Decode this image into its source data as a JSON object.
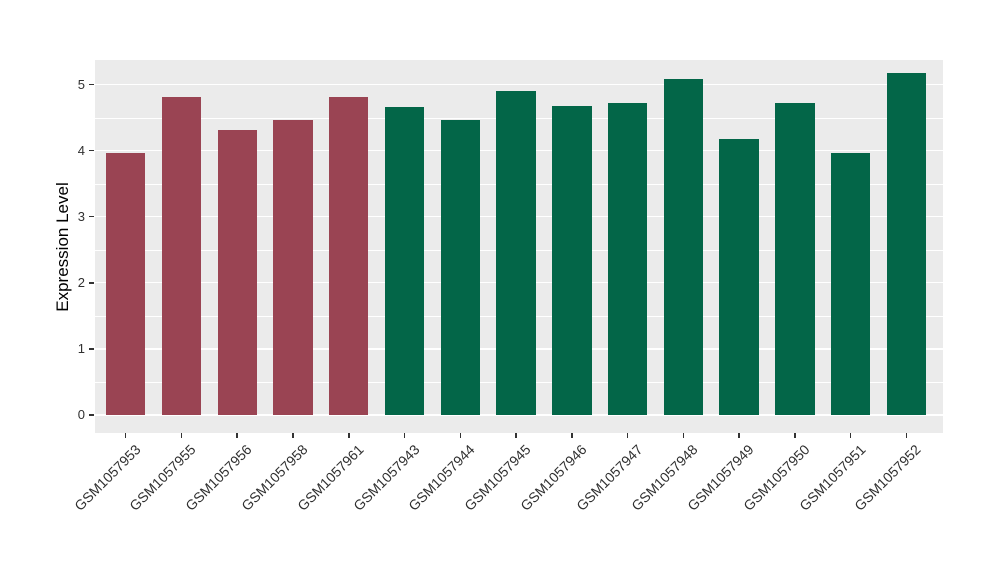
{
  "figure": {
    "background": "#FFFFFF",
    "panel_background": "#EBEBEB",
    "gridline_color": "#FFFFFF",
    "tick_color": "#333333",
    "axis_text_color": "#303030",
    "axis_title_color": "#000000"
  },
  "chart_data": {
    "type": "bar",
    "title": "",
    "xlabel": "",
    "ylabel": "Expression Level",
    "categories": [
      "GSM1057953",
      "GSM1057955",
      "GSM1057956",
      "GSM1057958",
      "GSM1057961",
      "GSM1057943",
      "GSM1057944",
      "GSM1057945",
      "GSM1057946",
      "GSM1057947",
      "GSM1057948",
      "GSM1057949",
      "GSM1057950",
      "GSM1057951",
      "GSM1057952"
    ],
    "values": [
      3.97,
      4.81,
      4.31,
      4.47,
      4.81,
      4.66,
      4.47,
      4.9,
      4.68,
      4.72,
      5.08,
      4.18,
      4.72,
      3.97,
      5.17
    ],
    "bar_groups": [
      0,
      0,
      0,
      0,
      0,
      1,
      1,
      1,
      1,
      1,
      1,
      1,
      1,
      1,
      1
    ],
    "group_colors": [
      "#9A4453",
      "#036648"
    ],
    "yticks": [
      0,
      1,
      2,
      3,
      4,
      5
    ],
    "minor_yticks": [
      0.5,
      1.5,
      2.5,
      3.5,
      4.5
    ],
    "ylim": [
      -0.26,
      5.38
    ],
    "grid": "major-and-minor-horizontal",
    "legend": "none",
    "x_label_rotation_deg": 45
  }
}
